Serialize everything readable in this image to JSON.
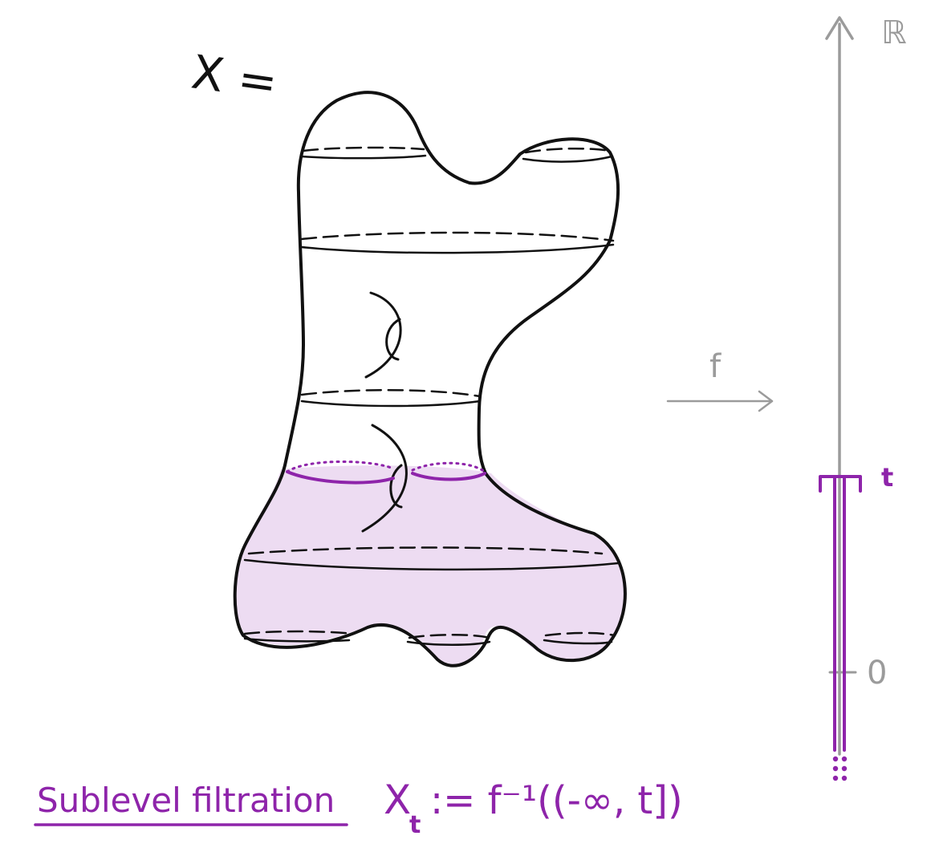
{
  "space_label": "X =",
  "map_label": "f",
  "axis_label": "ℝ",
  "threshold_label": "t",
  "zero_label": "0",
  "caption": {
    "term": "Sublevel filtration",
    "formula_lhs": "X",
    "formula_sub": "t",
    "formula_rhs": ":= f⁻¹((-∞, t])"
  },
  "colors": {
    "ink": "#111111",
    "axis": "#9b9b9b",
    "accent": "#8e24aa",
    "fill": "#eddcf2"
  }
}
